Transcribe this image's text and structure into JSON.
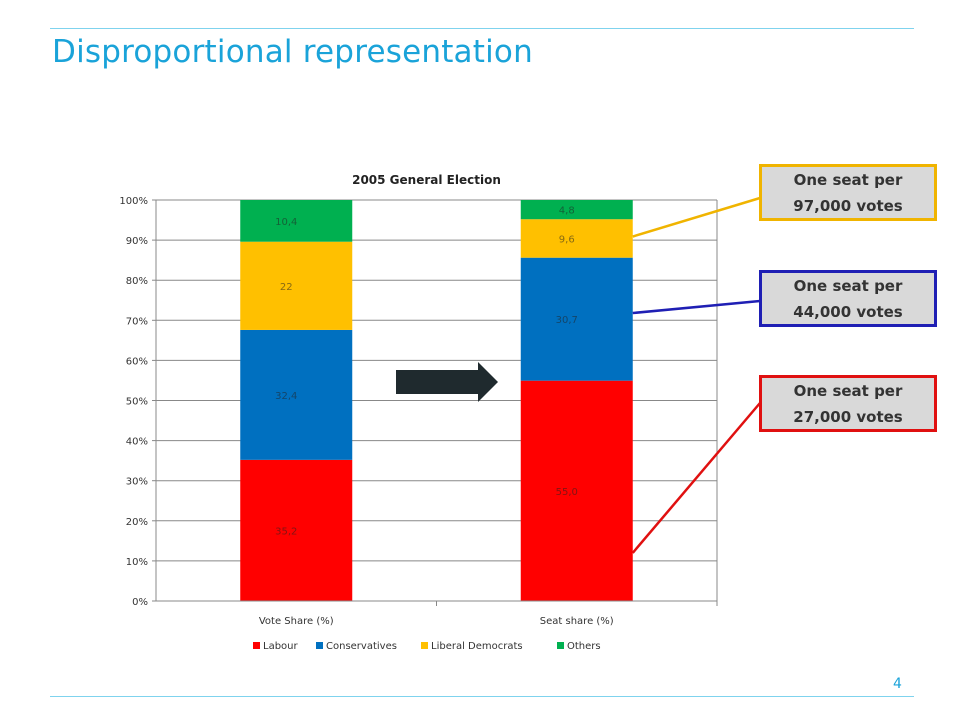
{
  "slide": {
    "title": "Disproportional representation",
    "page_number": "4"
  },
  "colors": {
    "rule": "#7fd3ee",
    "title": "#1aa3d9",
    "labour": "#ff0000",
    "conservatives": "#0070c0",
    "liberal_democrats": "#ffc000",
    "others": "#00b050",
    "arrow": "#1f2a2e",
    "callout_bg": "#d9d9d9"
  },
  "chart_data": {
    "type": "bar",
    "stacked": "percent",
    "title": "2005 General Election",
    "categories": [
      "Vote Share (%)",
      "Seat share (%)"
    ],
    "y_ticks": [
      "0%",
      "10%",
      "20%",
      "30%",
      "40%",
      "50%",
      "60%",
      "70%",
      "80%",
      "90%",
      "100%"
    ],
    "ylim": [
      0,
      100
    ],
    "grid": true,
    "legend_position": "bottom",
    "series": [
      {
        "name": "Labour",
        "values": [
          35.2,
          55.0
        ],
        "labels": [
          "35,2",
          "55,0"
        ],
        "color": "#ff0000"
      },
      {
        "name": "Conservatives",
        "values": [
          32.4,
          30.7
        ],
        "labels": [
          "32,4",
          "30,7"
        ],
        "color": "#0070c0"
      },
      {
        "name": "Liberal Democrats",
        "values": [
          22,
          9.6
        ],
        "labels": [
          "22",
          "9,6"
        ],
        "color": "#ffc000"
      },
      {
        "name": "Others",
        "values": [
          10.4,
          4.8
        ],
        "labels": [
          "10,4",
          "4,8"
        ],
        "color": "#00b050"
      }
    ]
  },
  "callouts": [
    {
      "line1": "One seat per",
      "line2": "97,000 votes",
      "color": "#f0b400",
      "series": "Liberal Democrats"
    },
    {
      "line1": "One seat per",
      "line2": "44,000 votes",
      "color": "#1f1fb4",
      "series": "Conservatives"
    },
    {
      "line1": "One seat per",
      "line2": "27,000 votes",
      "color": "#e01010",
      "series": "Labour"
    }
  ]
}
